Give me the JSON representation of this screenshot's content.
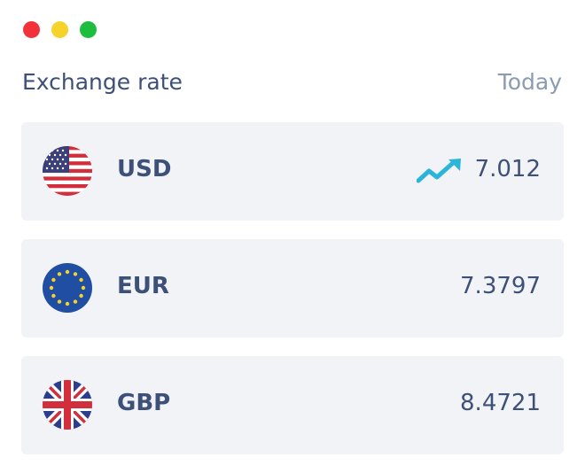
{
  "header": {
    "title": "Exchange rate",
    "period": "Today"
  },
  "rates": [
    {
      "code": "USD",
      "rate": 7.012
    },
    {
      "code": "EUR",
      "rate": 7.3797
    },
    {
      "code": "GBP",
      "rate": 8.4721
    }
  ]
}
